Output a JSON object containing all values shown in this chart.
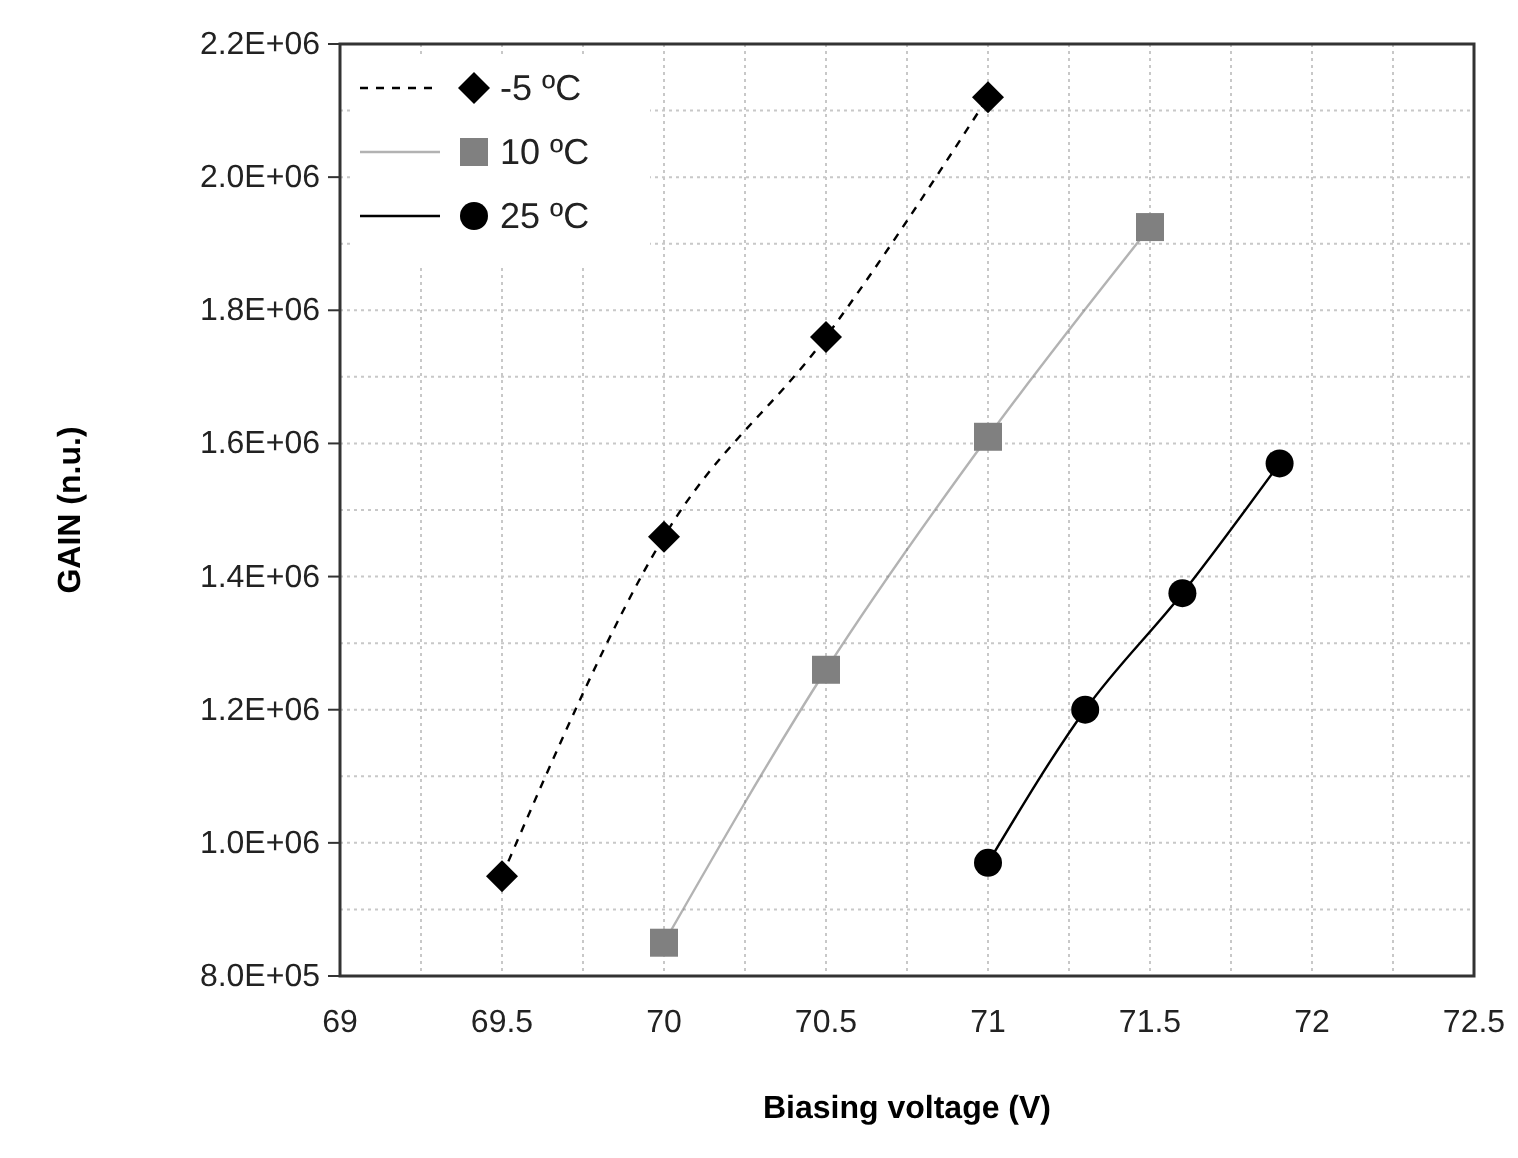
{
  "chart_data": {
    "type": "line",
    "xlabel": "Biasing voltage (V)",
    "ylabel": "GAIN (n.u.)",
    "xlim": [
      69,
      72.5
    ],
    "xticks": [
      69,
      69.5,
      70,
      70.5,
      71,
      71.5,
      72,
      72.5
    ],
    "ylim": [
      800000,
      2200000
    ],
    "yticks": [
      {
        "value": 800000,
        "label": "8.0E+05"
      },
      {
        "value": 1000000,
        "label": "1.0E+06"
      },
      {
        "value": 1200000,
        "label": "1.2E+06"
      },
      {
        "value": 1400000,
        "label": "1.4E+06"
      },
      {
        "value": 1600000,
        "label": "1.6E+06"
      },
      {
        "value": 1800000,
        "label": "1.8E+06"
      },
      {
        "value": 2000000,
        "label": "2.0E+06"
      },
      {
        "value": 2200000,
        "label": "2.2E+06"
      }
    ],
    "grid": true,
    "legend": "top left",
    "series": [
      {
        "name": "-5 ºC",
        "color": "#000000",
        "marker": "diamond",
        "line_style": "dashed",
        "x": [
          69.5,
          70,
          70.5,
          71
        ],
        "values": [
          950000,
          1460000,
          1760000,
          2120000
        ]
      },
      {
        "name": "10 ºC",
        "color": "#808080",
        "marker": "square",
        "line_style": "solid",
        "x": [
          70,
          70.5,
          71,
          71.5
        ],
        "values": [
          850000,
          1260000,
          1610000,
          1925000
        ]
      },
      {
        "name": "25 ºC",
        "color": "#000000",
        "marker": "circle",
        "line_style": "solid",
        "x": [
          71,
          71.3,
          71.6,
          71.9
        ],
        "values": [
          970000,
          1200000,
          1375000,
          1570000
        ]
      }
    ]
  }
}
